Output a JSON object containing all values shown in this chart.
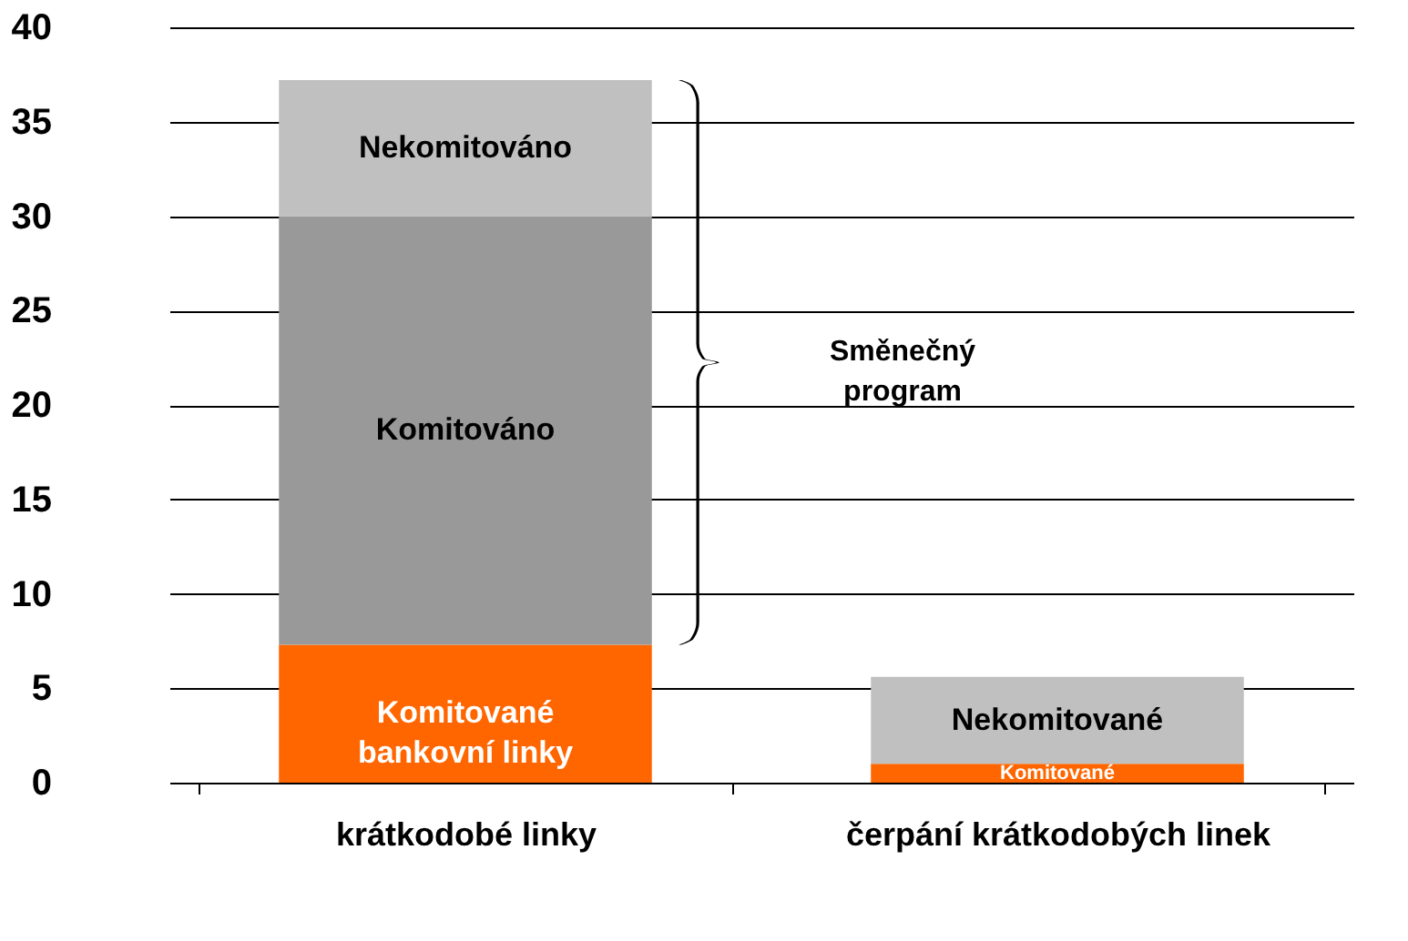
{
  "chart_data": {
    "type": "bar",
    "stacked": true,
    "categories": [
      "krátkodobé linky",
      "čerpání krátkodobých linek"
    ],
    "series": [
      {
        "color": "#ff6600",
        "values": [
          7.3,
          1.0
        ]
      },
      {
        "color": "#999999",
        "values": [
          22.7,
          null
        ]
      },
      {
        "color": "#c0c0c0",
        "values": [
          7.2,
          4.6
        ]
      }
    ],
    "ylim": [
      0,
      40
    ],
    "yticks": [
      0,
      5,
      10,
      15,
      20,
      25,
      30,
      35,
      40
    ],
    "grid": "y",
    "legend": false,
    "annotations": [
      "Komitované\nbankovní linky",
      "Komitováno",
      "Nekomitováno",
      "Nekomitované",
      "Komitované",
      "Směnečný\nprogram"
    ]
  }
}
